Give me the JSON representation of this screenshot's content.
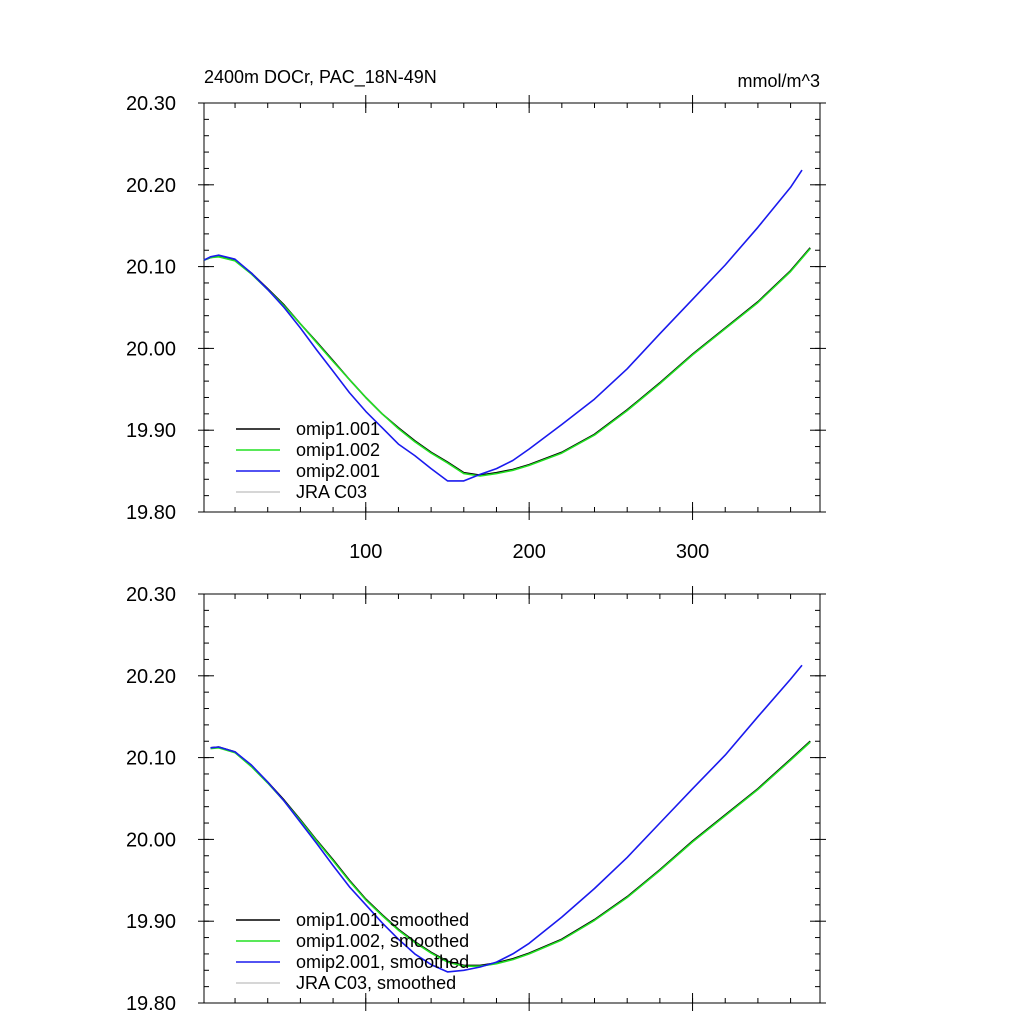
{
  "chart_data": [
    {
      "type": "line",
      "title": "2400m DOCr, PAC_18N-49N",
      "units": "mmol/m^3",
      "xlim": [
        1,
        378
      ],
      "ylim": [
        19.8,
        20.3
      ],
      "xticks": [
        100,
        200,
        300
      ],
      "xtick_labels": [
        "100",
        "200",
        "300"
      ],
      "yticks": [
        19.8,
        19.9,
        20.0,
        20.1,
        20.2,
        20.3
      ],
      "ytick_labels": [
        "19.80",
        "19.90",
        "20.00",
        "20.10",
        "20.20",
        "20.30"
      ],
      "legend_position": "bottom-left",
      "series": [
        {
          "name": "omip1.001",
          "color": "#000000",
          "x": [
            1,
            5,
            10,
            20,
            30,
            40,
            50,
            60,
            70,
            80,
            90,
            100,
            110,
            120,
            130,
            140,
            150,
            160,
            170,
            180,
            190,
            200,
            220,
            240,
            260,
            280,
            300,
            320,
            340,
            360,
            372
          ],
          "y": [
            20.108,
            20.111,
            20.113,
            20.108,
            20.092,
            20.073,
            20.053,
            20.03,
            20.008,
            19.985,
            19.962,
            19.94,
            19.92,
            19.903,
            19.887,
            19.873,
            19.861,
            19.848,
            19.845,
            19.848,
            19.852,
            19.858,
            19.873,
            19.895,
            19.925,
            19.958,
            19.993,
            20.025,
            20.057,
            20.095,
            20.123
          ]
        },
        {
          "name": "omip1.002",
          "color": "#22e022",
          "x": [
            1,
            5,
            10,
            20,
            30,
            40,
            50,
            60,
            70,
            80,
            90,
            100,
            110,
            120,
            130,
            140,
            150,
            160,
            170,
            180,
            190,
            200,
            220,
            240,
            260,
            280,
            300,
            320,
            340,
            360,
            372
          ],
          "y": [
            20.108,
            20.111,
            20.112,
            20.107,
            20.091,
            20.072,
            20.052,
            20.03,
            20.007,
            19.984,
            19.962,
            19.94,
            19.92,
            19.902,
            19.886,
            19.872,
            19.86,
            19.847,
            19.844,
            19.847,
            19.851,
            19.857,
            19.872,
            19.894,
            19.924,
            19.957,
            19.992,
            20.024,
            20.056,
            20.094,
            20.122
          ]
        },
        {
          "name": "omip2.001",
          "color": "#1a1aee",
          "x": [
            1,
            5,
            10,
            20,
            30,
            40,
            50,
            60,
            70,
            80,
            90,
            100,
            110,
            120,
            130,
            140,
            150,
            160,
            170,
            180,
            190,
            200,
            220,
            240,
            260,
            280,
            300,
            320,
            340,
            360,
            367
          ],
          "y": [
            20.108,
            20.112,
            20.114,
            20.109,
            20.092,
            20.072,
            20.05,
            20.025,
            19.998,
            19.972,
            19.946,
            19.923,
            19.903,
            19.883,
            19.869,
            19.853,
            19.838,
            19.838,
            19.846,
            19.853,
            19.863,
            19.877,
            19.907,
            19.938,
            19.975,
            20.018,
            20.06,
            20.102,
            20.148,
            20.197,
            20.218
          ]
        },
        {
          "name": "JRA C03",
          "color": "#c8c8c8",
          "x": [],
          "y": []
        }
      ]
    },
    {
      "type": "line",
      "xlim": [
        1,
        378
      ],
      "ylim": [
        19.8,
        20.3
      ],
      "xticks": [
        100,
        200,
        300
      ],
      "yticks": [
        19.8,
        19.9,
        20.0,
        20.1,
        20.2,
        20.3
      ],
      "ytick_labels": [
        "19.80",
        "19.90",
        "20.00",
        "20.10",
        "20.20",
        "20.30"
      ],
      "legend_position": "bottom-left",
      "series": [
        {
          "name": "omip1.001, smoothed",
          "color": "#000000",
          "x": [
            5,
            10,
            20,
            30,
            40,
            50,
            60,
            70,
            80,
            90,
            100,
            110,
            120,
            130,
            140,
            150,
            160,
            170,
            180,
            190,
            200,
            220,
            240,
            260,
            280,
            300,
            320,
            340,
            360,
            372
          ],
          "y": [
            20.112,
            20.113,
            20.107,
            20.09,
            20.07,
            20.048,
            20.024,
            19.999,
            19.975,
            19.95,
            19.927,
            19.908,
            19.89,
            19.875,
            19.862,
            19.851,
            19.846,
            19.846,
            19.849,
            19.854,
            19.861,
            19.878,
            19.902,
            19.93,
            19.963,
            19.998,
            20.03,
            20.062,
            20.098,
            20.12
          ]
        },
        {
          "name": "omip1.002, smoothed",
          "color": "#22e022",
          "x": [
            5,
            10,
            20,
            30,
            40,
            50,
            60,
            70,
            80,
            90,
            100,
            110,
            120,
            130,
            140,
            150,
            160,
            170,
            180,
            190,
            200,
            220,
            240,
            260,
            280,
            300,
            320,
            340,
            360,
            372
          ],
          "y": [
            20.111,
            20.112,
            20.106,
            20.089,
            20.069,
            20.047,
            20.023,
            19.998,
            19.974,
            19.949,
            19.926,
            19.907,
            19.889,
            19.874,
            19.861,
            19.85,
            19.845,
            19.845,
            19.848,
            19.853,
            19.86,
            19.877,
            19.901,
            19.929,
            19.962,
            19.997,
            20.029,
            20.061,
            20.097,
            20.119
          ]
        },
        {
          "name": "omip2.001, smoothed",
          "color": "#1a1aee",
          "x": [
            5,
            10,
            20,
            30,
            40,
            50,
            60,
            70,
            80,
            90,
            100,
            110,
            120,
            130,
            140,
            150,
            160,
            170,
            180,
            190,
            200,
            220,
            240,
            260,
            280,
            300,
            320,
            340,
            360,
            367
          ],
          "y": [
            20.112,
            20.113,
            20.107,
            20.091,
            20.07,
            20.047,
            20.021,
            19.995,
            19.968,
            19.942,
            19.92,
            19.898,
            19.878,
            19.86,
            19.847,
            19.838,
            19.84,
            19.844,
            19.85,
            19.86,
            19.873,
            19.905,
            19.94,
            19.978,
            20.02,
            20.062,
            20.103,
            20.15,
            20.196,
            20.213
          ]
        },
        {
          "name": "JRA C03, smoothed",
          "color": "#c8c8c8",
          "x": [],
          "y": []
        }
      ]
    }
  ]
}
